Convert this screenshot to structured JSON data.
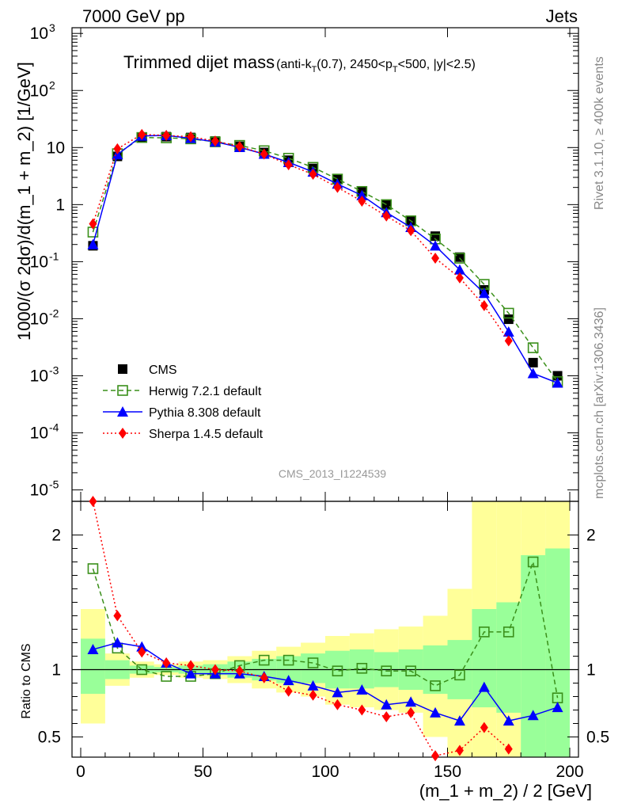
{
  "chart_data": {
    "type": "line",
    "corner_left": "7000 GeV pp",
    "corner_right": "Jets",
    "title": "Trimmed dijet mass",
    "title_detail_parts": [
      "(anti-k",
      "T",
      "(0.7), 2450<p",
      "T",
      "<500, |y|<2.5)"
    ],
    "xlabel": "(m_1 + m_2) / 2 [GeV]",
    "ylabel_main": "1000/(σ 2dσ)/d(m_1 + m_2) [1/GeV]",
    "ylabel_ratio": "Ratio to CMS",
    "analysis_tag": "CMS_2013_I1224539",
    "side_text_top": "Rivet 3.1.10, ≥ 400k events",
    "side_text_bottom": "mcplots.cern.ch [arXiv:1306.3436]",
    "xlim": [
      0,
      200
    ],
    "ylim_log_main": [
      -5.2,
      3.1
    ],
    "ylim_ratio": [
      0.35,
      2.25
    ],
    "x_ticks": [
      "0",
      "50",
      "100",
      "150",
      "200"
    ],
    "y_ticks_main": [
      "10",
      "1",
      "10"
    ],
    "y_ticks_main_powers": [
      "3",
      "2",
      "-1",
      "-2",
      "-3",
      "-4",
      "-5"
    ],
    "y_ticks_ratio": [
      "0.5",
      "1",
      "2"
    ],
    "x_centers": [
      5,
      15,
      25,
      35,
      45,
      55,
      65,
      75,
      85,
      95,
      105,
      115,
      125,
      135,
      145,
      155,
      165,
      175,
      185,
      195
    ],
    "series": [
      {
        "name": "CMS",
        "color": "#000000",
        "marker": "square-filled",
        "values": [
          0.19,
          7.0,
          15.0,
          15.5,
          15.0,
          13.0,
          10.5,
          8.2,
          6.0,
          4.3,
          2.8,
          1.7,
          1.0,
          0.52,
          0.28,
          0.12,
          0.032,
          0.0098,
          0.0017,
          0.001
        ]
      },
      {
        "name": "Herwig 7.2.1 default",
        "color": "#3a8f1a",
        "marker": "square-open",
        "dash": "6,4",
        "values": [
          0.33,
          7.8,
          15.0,
          14.8,
          14.2,
          12.6,
          10.9,
          8.8,
          6.5,
          4.5,
          2.8,
          1.7,
          1.0,
          0.52,
          0.25,
          0.115,
          0.04,
          0.0125,
          0.0031,
          0.00079
        ],
        "ratio": [
          1.75,
          1.16,
          1.0,
          0.95,
          0.95,
          0.97,
          1.03,
          1.07,
          1.07,
          1.05,
          0.99,
          1.01,
          0.99,
          0.99,
          0.88,
          0.96,
          1.28,
          1.28,
          1.8,
          0.79
        ]
      },
      {
        "name": "Pythia 8.308 default",
        "color": "#0000ff",
        "marker": "triangle",
        "dash": "",
        "values": [
          0.2,
          7.5,
          16.0,
          16.3,
          14.5,
          12.6,
          10.1,
          7.7,
          5.5,
          3.75,
          2.3,
          1.45,
          0.73,
          0.4,
          0.19,
          0.072,
          0.028,
          0.0059,
          0.0011,
          0.00075
        ],
        "ratio": [
          1.15,
          1.2,
          1.17,
          1.05,
          0.97,
          0.97,
          0.97,
          0.95,
          0.92,
          0.88,
          0.83,
          0.85,
          0.74,
          0.76,
          0.68,
          0.62,
          0.87,
          0.62,
          0.66,
          0.72
        ]
      },
      {
        "name": "Sherpa 1.4.5 default",
        "color": "#ff0000",
        "marker": "diamond",
        "dash": "2,3",
        "values": [
          0.46,
          9.5,
          17.0,
          16.3,
          15.5,
          13.0,
          10.4,
          7.7,
          5.0,
          3.4,
          2.0,
          1.15,
          0.63,
          0.35,
          0.115,
          0.052,
          0.017,
          0.0041
        ],
        "ratio": [
          2.25,
          1.4,
          1.13,
          1.05,
          1.03,
          1.0,
          0.99,
          0.94,
          0.84,
          0.81,
          0.74,
          0.7,
          0.65,
          0.68,
          0.36,
          0.4,
          0.57,
          0.41
        ]
      }
    ],
    "ratio_band_green": [
      [
        0.82,
        1.23
      ],
      [
        0.93,
        1.07
      ],
      [
        0.97,
        1.03
      ],
      [
        0.98,
        1.02
      ],
      [
        0.97,
        1.03
      ],
      [
        0.96,
        1.04
      ],
      [
        0.94,
        1.06
      ],
      [
        0.92,
        1.08
      ],
      [
        0.9,
        1.1
      ],
      [
        0.9,
        1.12
      ],
      [
        0.86,
        1.14
      ],
      [
        0.86,
        1.15
      ],
      [
        0.87,
        1.13
      ],
      [
        0.85,
        1.15
      ],
      [
        0.82,
        1.18
      ],
      [
        0.78,
        1.22
      ],
      [
        0.72,
        1.45
      ],
      [
        0.68,
        1.5
      ],
      [
        0.35,
        1.85
      ],
      [
        0.35,
        1.9
      ]
    ],
    "ratio_band_yellow": [
      [
        0.6,
        1.45
      ],
      [
        0.88,
        1.12
      ],
      [
        0.94,
        1.06
      ],
      [
        0.96,
        1.04
      ],
      [
        0.94,
        1.06
      ],
      [
        0.93,
        1.07
      ],
      [
        0.9,
        1.1
      ],
      [
        0.86,
        1.14
      ],
      [
        0.83,
        1.17
      ],
      [
        0.8,
        1.2
      ],
      [
        0.74,
        1.25
      ],
      [
        0.72,
        1.27
      ],
      [
        0.7,
        1.3
      ],
      [
        0.68,
        1.32
      ],
      [
        0.5,
        1.4
      ],
      [
        0.35,
        1.6
      ],
      [
        0.35,
        2.25
      ],
      [
        0.35,
        2.25
      ],
      [
        0.35,
        2.25
      ],
      [
        0.35,
        2.25
      ]
    ]
  }
}
